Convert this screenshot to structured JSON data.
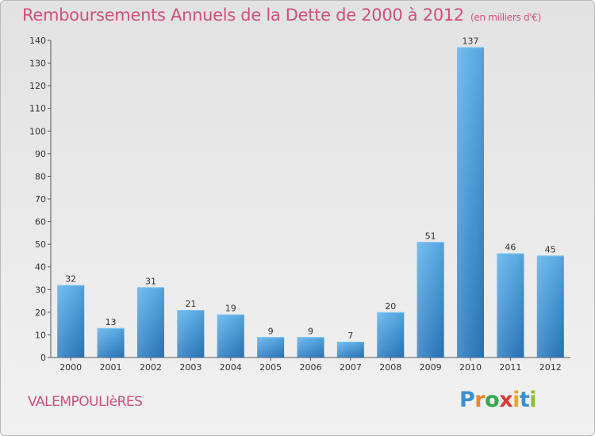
{
  "header": {
    "title": "Remboursements Annuels de la Dette de 2000 à 2012",
    "subtitle": "(en milliers d'€)"
  },
  "footer": {
    "commune": "VALEMPOULIèRES",
    "logo": [
      "P",
      "r",
      "o",
      "x",
      "i",
      "t",
      "i"
    ]
  },
  "colors": {
    "title": "#d04f7e",
    "bar_top": "#5aaee8",
    "bar_bottom": "#2a78bd"
  },
  "chart_data": {
    "type": "bar",
    "title": "Remboursements Annuels de la Dette de 2000 à 2012",
    "subtitle": "(en milliers d'€)",
    "categories": [
      "2000",
      "2001",
      "2002",
      "2003",
      "2004",
      "2005",
      "2006",
      "2007",
      "2008",
      "2009",
      "2010",
      "2011",
      "2012"
    ],
    "values": [
      32,
      13,
      31,
      21,
      19,
      9,
      9,
      7,
      20,
      51,
      137,
      46,
      45
    ],
    "ylim": [
      0,
      140
    ],
    "yticks": [
      0,
      10,
      20,
      30,
      40,
      50,
      60,
      70,
      80,
      90,
      100,
      110,
      120,
      130,
      140
    ],
    "grid": false,
    "legend": "none"
  }
}
